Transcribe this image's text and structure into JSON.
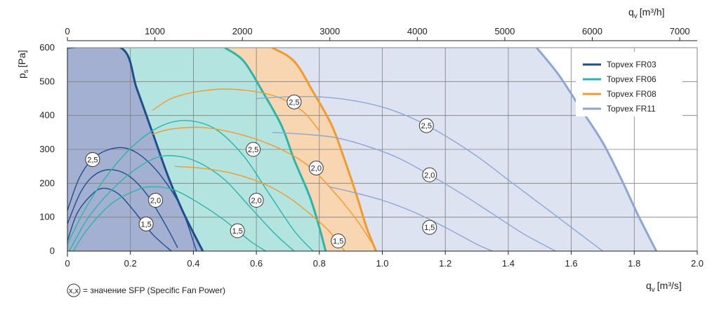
{
  "chart_data": {
    "type": "line",
    "xlabel": "q",
    "xlabel_sub": "v",
    "xlabel_unit": "[m³/s]",
    "x2label": "q",
    "x2label_sub": "v",
    "x2label_unit": "[m³/h]",
    "ylabel": "p",
    "ylabel_sub": "s",
    "ylabel_unit": "[Pa]",
    "xlim": [
      0,
      2.0
    ],
    "ylim": [
      0,
      600
    ],
    "x_ticks": [
      "0",
      "0.2",
      "0.4",
      "0.6",
      "0.8",
      "1.0",
      "1.2",
      "1.4",
      "1.6",
      "1.8",
      "2.0"
    ],
    "x2_ticks": [
      "0",
      "1000",
      "2000",
      "3000",
      "4000",
      "5000",
      "6000",
      "7000"
    ],
    "y_ticks": [
      "0",
      "100",
      "200",
      "300",
      "400",
      "500",
      "600"
    ],
    "grid": true,
    "legend_position": "top-right",
    "legend": [
      {
        "label": "Topvex FR03",
        "color": "#1f4e8c"
      },
      {
        "label": "Topvex FR06",
        "color": "#2bb5a8"
      },
      {
        "label": "Topvex FR08",
        "color": "#f39a2c"
      },
      {
        "label": "Topvex FR11",
        "color": "#8fa6d4"
      }
    ],
    "footnote_symbol": "x,x",
    "footnote": "= значение SFP (Specific Fan Power)",
    "series": [
      {
        "name": "Topvex FR03",
        "color": "#1f4e8c",
        "fill": "#a3b0d2",
        "max_curve": [
          [
            0,
            600
          ],
          [
            0.17,
            600
          ],
          [
            0.22,
            480
          ],
          [
            0.27,
            350
          ],
          [
            0.32,
            220
          ],
          [
            0.37,
            110
          ],
          [
            0.43,
            0
          ]
        ],
        "sfp_curves": [
          {
            "label": "2,5",
            "points": [
              [
                0,
                120
              ],
              [
                0.04,
                220
              ],
              [
                0.09,
                280
              ],
              [
                0.16,
                305
              ],
              [
                0.22,
                290
              ],
              [
                0.29,
                230
              ],
              [
                0.36,
                130
              ],
              [
                0.41,
                0
              ]
            ]
          },
          {
            "label": "2,0",
            "points": [
              [
                0,
                80
              ],
              [
                0.04,
                170
              ],
              [
                0.08,
                220
              ],
              [
                0.13,
                240
              ],
              [
                0.19,
                225
              ],
              [
                0.25,
                170
              ],
              [
                0.31,
                80
              ],
              [
                0.35,
                10
              ]
            ]
          },
          {
            "label": "1,5",
            "points": [
              [
                0,
                30
              ],
              [
                0.03,
                110
              ],
              [
                0.07,
                160
              ],
              [
                0.11,
                185
              ],
              [
                0.16,
                170
              ],
              [
                0.21,
                120
              ],
              [
                0.27,
                50
              ],
              [
                0.33,
                0
              ]
            ]
          }
        ],
        "sfp_markers": [
          {
            "label": "2,5",
            "x": 0.08,
            "y": 270
          },
          {
            "label": "2,0",
            "x": 0.28,
            "y": 150
          },
          {
            "label": "1,5",
            "x": 0.25,
            "y": 80
          }
        ]
      },
      {
        "name": "Topvex FR06",
        "color": "#2bb5a8",
        "fill": "#b4e4df",
        "max_curve": [
          [
            0.5,
            600
          ],
          [
            0.56,
            560
          ],
          [
            0.62,
            470
          ],
          [
            0.68,
            370
          ],
          [
            0.72,
            270
          ],
          [
            0.77,
            160
          ],
          [
            0.8,
            70
          ],
          [
            0.82,
            0
          ]
        ],
        "sfp_curves": [
          {
            "label": "2,5",
            "points": [
              [
                0,
                20
              ],
              [
                0.06,
                130
              ],
              [
                0.14,
                240
              ],
              [
                0.22,
                320
              ],
              [
                0.3,
                370
              ],
              [
                0.38,
                385
              ],
              [
                0.47,
                360
              ],
              [
                0.56,
                280
              ],
              [
                0.64,
                170
              ],
              [
                0.72,
                60
              ],
              [
                0.78,
                0
              ]
            ]
          },
          {
            "label": "2,0",
            "points": [
              [
                0,
                -10
              ],
              [
                0.06,
                90
              ],
              [
                0.12,
                160
              ],
              [
                0.2,
                230
              ],
              [
                0.28,
                275
              ],
              [
                0.35,
                280
              ],
              [
                0.42,
                260
              ],
              [
                0.5,
                210
              ],
              [
                0.58,
                130
              ],
              [
                0.66,
                50
              ],
              [
                0.72,
                0
              ]
            ]
          },
          {
            "label": "1,5",
            "points": [
              [
                0,
                -30
              ],
              [
                0.06,
                60
              ],
              [
                0.14,
                140
              ],
              [
                0.22,
                180
              ],
              [
                0.27,
                190
              ],
              [
                0.34,
                180
              ],
              [
                0.42,
                140
              ],
              [
                0.5,
                90
              ],
              [
                0.58,
                30
              ],
              [
                0.63,
                0
              ]
            ]
          }
        ],
        "sfp_markers": [
          {
            "label": "2,5",
            "x": 0.59,
            "y": 300
          },
          {
            "label": "2,0",
            "x": 0.6,
            "y": 150
          },
          {
            "label": "1,5",
            "x": 0.54,
            "y": 60
          }
        ]
      },
      {
        "name": "Topvex FR08",
        "color": "#f39a2c",
        "fill": "#f9d6b2",
        "max_curve": [
          [
            0.65,
            600
          ],
          [
            0.72,
            560
          ],
          [
            0.78,
            470
          ],
          [
            0.84,
            370
          ],
          [
            0.88,
            270
          ],
          [
            0.92,
            160
          ],
          [
            0.95,
            70
          ],
          [
            0.98,
            0
          ]
        ],
        "sfp_curves": [
          {
            "label": "2,5",
            "points": [
              [
                0.27,
                415
              ],
              [
                0.33,
                450
              ],
              [
                0.41,
                470
              ],
              [
                0.5,
                478
              ],
              [
                0.6,
                470
              ],
              [
                0.68,
                450
              ],
              [
                0.75,
                410
              ],
              [
                0.8,
                355
              ]
            ]
          },
          {
            "label": "2,0",
            "points": [
              [
                0.27,
                345
              ],
              [
                0.33,
                360
              ],
              [
                0.42,
                365
              ],
              [
                0.5,
                355
              ],
              [
                0.6,
                330
              ],
              [
                0.7,
                290
              ],
              [
                0.78,
                240
              ],
              [
                0.86,
                160
              ],
              [
                0.92,
                90
              ],
              [
                0.97,
                20
              ]
            ]
          },
          {
            "label": "1,5",
            "points": [
              [
                0.34,
                250
              ],
              [
                0.42,
                245
              ],
              [
                0.52,
                230
              ],
              [
                0.62,
                200
              ],
              [
                0.7,
                160
              ],
              [
                0.77,
                110
              ],
              [
                0.83,
                60
              ],
              [
                0.88,
                0
              ]
            ]
          }
        ],
        "sfp_markers": [
          {
            "label": "2,5",
            "x": 0.72,
            "y": 440
          },
          {
            "label": "2,0",
            "x": 0.79,
            "y": 245
          },
          {
            "label": "1,5",
            "x": 0.86,
            "y": 30
          }
        ]
      },
      {
        "name": "Topvex FR11",
        "color": "#8fa6d4",
        "fill": "#dde3f0",
        "max_curve": [
          [
            1.49,
            600
          ],
          [
            1.56,
            520
          ],
          [
            1.63,
            420
          ],
          [
            1.7,
            320
          ],
          [
            1.76,
            210
          ],
          [
            1.81,
            110
          ],
          [
            1.87,
            0
          ]
        ],
        "sfp_curves": [
          {
            "label": "2,5",
            "points": [
              [
                0.6,
                450
              ],
              [
                0.7,
                455
              ],
              [
                0.8,
                455
              ],
              [
                0.9,
                445
              ],
              [
                1.0,
                425
              ],
              [
                1.1,
                390
              ],
              [
                1.2,
                340
              ],
              [
                1.3,
                280
              ],
              [
                1.4,
                210
              ],
              [
                1.5,
                140
              ],
              [
                1.6,
                70
              ],
              [
                1.7,
                0
              ]
            ]
          },
          {
            "label": "2,0",
            "points": [
              [
                0.65,
                350
              ],
              [
                0.75,
                345
              ],
              [
                0.85,
                335
              ],
              [
                0.95,
                310
              ],
              [
                1.05,
                275
              ],
              [
                1.15,
                225
              ],
              [
                1.25,
                170
              ],
              [
                1.35,
                110
              ],
              [
                1.45,
                50
              ],
              [
                1.55,
                0
              ]
            ]
          },
          {
            "label": "1,5",
            "points": [
              [
                0.83,
                190
              ],
              [
                0.9,
                175
              ],
              [
                1.0,
                150
              ],
              [
                1.1,
                115
              ],
              [
                1.2,
                70
              ],
              [
                1.3,
                20
              ],
              [
                1.35,
                0
              ]
            ]
          }
        ],
        "sfp_markers": [
          {
            "label": "2,5",
            "x": 1.14,
            "y": 370
          },
          {
            "label": "2,0",
            "x": 1.15,
            "y": 225
          },
          {
            "label": "1,5",
            "x": 1.15,
            "y": 70
          }
        ]
      }
    ]
  }
}
